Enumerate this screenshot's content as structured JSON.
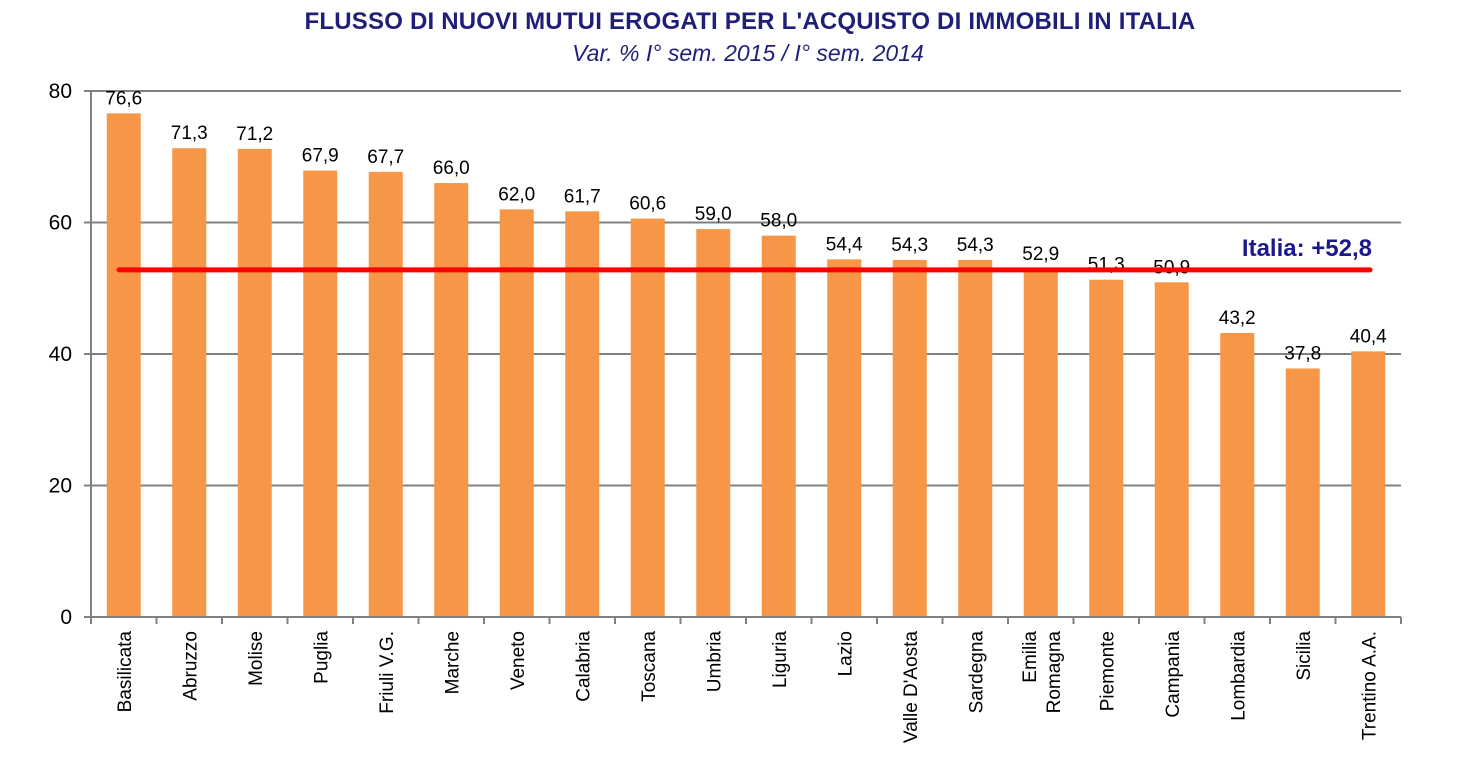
{
  "chart_data": {
    "type": "bar",
    "title": "FLUSSO DI NUOVI MUTUI EROGATI  PER L'ACQUISTO  DI IMMOBILI IN ITALIA",
    "subtitle": "Var. %  I° sem. 2015 / I° sem. 2014",
    "xlabel": "",
    "ylabel": "",
    "ylim": [
      0,
      80
    ],
    "yticks": [
      "0",
      "20",
      "40",
      "60",
      "80"
    ],
    "grid": true,
    "categories": [
      [
        "Basilicata"
      ],
      [
        "Abruzzo"
      ],
      [
        "Molise"
      ],
      [
        "Puglia"
      ],
      [
        "Friuli V.G."
      ],
      [
        "Marche"
      ],
      [
        "Veneto"
      ],
      [
        "Calabria"
      ],
      [
        "Toscana"
      ],
      [
        "Umbria"
      ],
      [
        "Liguria"
      ],
      [
        "Lazio"
      ],
      [
        "Valle D'Aosta"
      ],
      [
        "Sardegna"
      ],
      [
        "Emilia",
        "Romagna"
      ],
      [
        "Piemonte"
      ],
      [
        "Campania"
      ],
      [
        "Lombardia"
      ],
      [
        "Sicilia"
      ],
      [
        "Trentino A.A."
      ]
    ],
    "values": [
      76.6,
      71.3,
      71.2,
      67.9,
      67.7,
      66.0,
      62.0,
      61.7,
      60.6,
      59.0,
      58.0,
      54.4,
      54.3,
      54.3,
      52.9,
      51.3,
      50.9,
      43.2,
      37.8,
      40.4
    ],
    "data_labels": [
      "76,6",
      "71,3",
      "71,2",
      "67,9",
      "67,7",
      "66,0",
      "62,0",
      "61,7",
      "60,6",
      "59,0",
      "58,0",
      "54,4",
      "54,3",
      "54,3",
      "52,9",
      "51,3",
      "50,9",
      "43,2",
      "37,8",
      "40,4"
    ],
    "reference_line": {
      "value": 52.8,
      "label": "Italia: +52,8",
      "color": "#ff0000"
    },
    "colors": {
      "bar": "#f79646",
      "grid": "#808080",
      "axis": "#808080",
      "title": "#1f1f7a",
      "reference_label": "#1a1a8c"
    }
  }
}
